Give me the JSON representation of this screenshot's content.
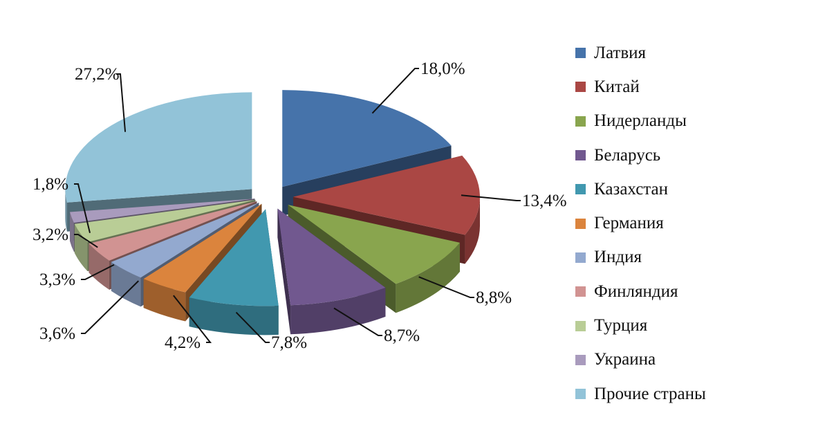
{
  "chart_data": {
    "type": "pie",
    "title": "",
    "categories": [
      "Латвия",
      "Китай",
      "Нидерланды",
      "Беларусь",
      "Казахстан",
      "Германия",
      "Индия",
      "Финляндия",
      "Турция",
      "Украина",
      "Прочие страны"
    ],
    "values": [
      18.0,
      13.4,
      8.8,
      8.7,
      7.8,
      4.2,
      3.6,
      3.3,
      3.2,
      1.8,
      27.2
    ],
    "data_labels": [
      "18,0%",
      "13,4%",
      "8,8%",
      "8,7%",
      "7,8%",
      "4,2%",
      "3,6%",
      "3,3%",
      "3,2%",
      "1,8%",
      "27,2%"
    ],
    "colors": [
      "#4673AA",
      "#AA4744",
      "#89A54E",
      "#71588F",
      "#4198AF",
      "#DB843D",
      "#93A9CF",
      "#D19392",
      "#B9CD96",
      "#A99BBD",
      "#92C3D8"
    ],
    "exploded": true,
    "three_d": true,
    "legend_position": "right"
  }
}
